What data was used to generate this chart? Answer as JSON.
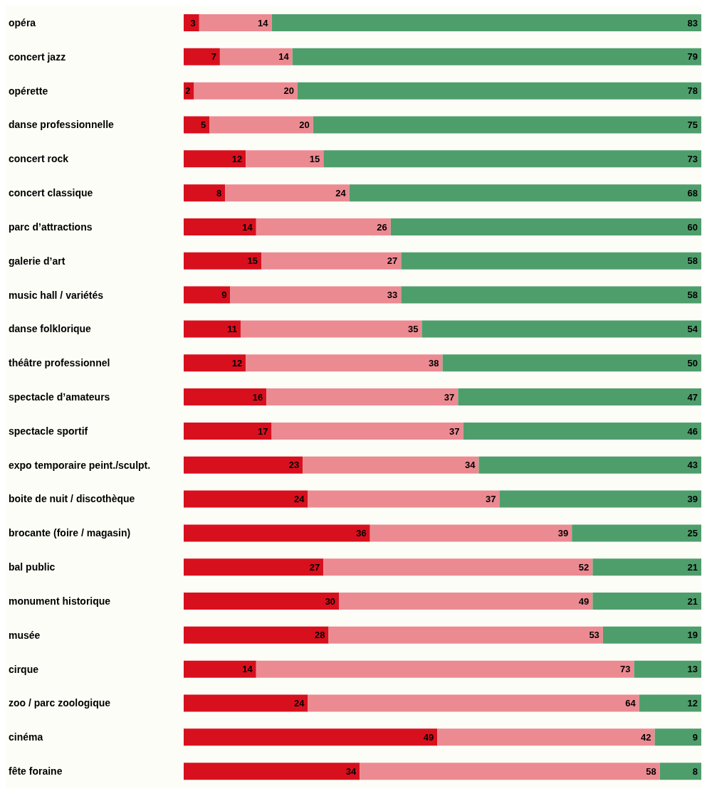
{
  "chart_data": {
    "type": "bar",
    "orientation": "horizontal",
    "stacked": true,
    "data_labels": true,
    "legend": false,
    "grid": false,
    "categories": [
      "opéra",
      "concert jazz",
      "opérette",
      "danse professionnelle",
      "concert rock",
      "concert classique",
      "parc d’attractions",
      "galerie d’art",
      "music hall / variétés",
      "danse folklorique",
      "théâtre professionnel",
      "spectacle d’amateurs",
      "spectacle sportif",
      "expo temporaire peint./sculpt.",
      "boite de nuit / discothèque",
      "brocante (foire / magasin)",
      "bal public",
      "monument historique",
      "musée",
      "cirque",
      "zoo / parc zoologique",
      "cinéma",
      "fête foraine"
    ],
    "series": [
      {
        "color": "#d8101e",
        "values": [
          3,
          7,
          2,
          5,
          12,
          8,
          14,
          15,
          9,
          11,
          12,
          16,
          17,
          23,
          24,
          36,
          27,
          30,
          28,
          14,
          24,
          49,
          34
        ]
      },
      {
        "color": "#ec8a92",
        "values": [
          14,
          14,
          20,
          20,
          15,
          24,
          26,
          27,
          33,
          35,
          38,
          37,
          37,
          34,
          37,
          39,
          52,
          49,
          53,
          73,
          64,
          42,
          58
        ]
      },
      {
        "color": "#4e9e6c",
        "values": [
          83,
          79,
          78,
          75,
          73,
          68,
          60,
          58,
          58,
          54,
          50,
          47,
          46,
          43,
          39,
          25,
          21,
          21,
          19,
          13,
          12,
          9,
          8
        ]
      }
    ]
  }
}
